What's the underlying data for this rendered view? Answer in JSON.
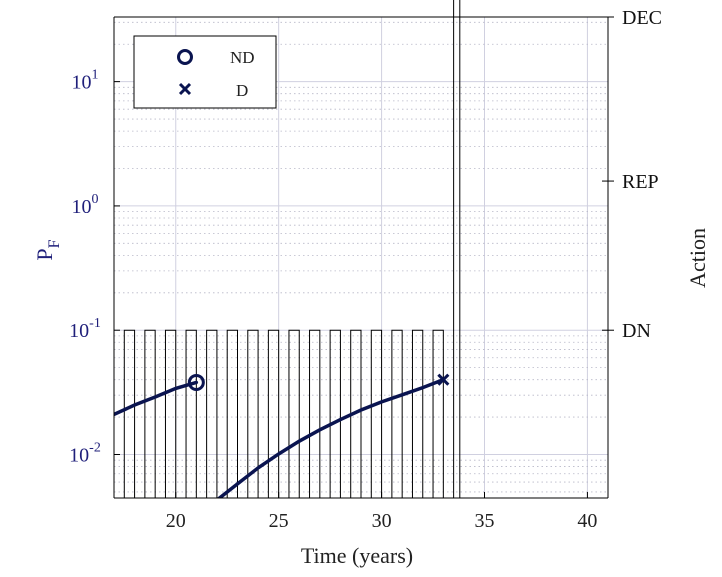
{
  "chart_data": {
    "type": "line",
    "xlabel": "Time (years)",
    "ylabel_left": {
      "main": "P",
      "sub": "F"
    },
    "ylabel_right": "Action",
    "xlim": [
      17,
      41
    ],
    "ylim_left_log10": [
      -2.35,
      1.52
    ],
    "y_scale_left": "log",
    "grid": true,
    "minor_grid": true,
    "legend_placement": "top-left",
    "x_ticks": [
      20,
      25,
      30,
      35,
      40
    ],
    "x_tick_labels": [
      "20",
      "25",
      "30",
      "35",
      "40"
    ],
    "y_left_ticks": [
      {
        "exp": 1,
        "base": "10",
        "sup": "1"
      },
      {
        "exp": 0,
        "base": "10",
        "sup": "0"
      },
      {
        "exp": -1,
        "base": "10",
        "sup": "-1"
      },
      {
        "exp": -2,
        "base": "10",
        "sup": "-2"
      }
    ],
    "y_right_ticks": [
      {
        "label": "DEC",
        "level": 3
      },
      {
        "label": "REP",
        "level": 2
      },
      {
        "label": "DN",
        "level": 1
      }
    ],
    "y_right_range": [
      0,
      3
    ],
    "series": [
      {
        "name": "ND",
        "marker": "circle",
        "end_marker_at": [
          21,
          0.038
        ],
        "points": [
          [
            17,
            0.021
          ],
          [
            18,
            0.025
          ],
          [
            19,
            0.029
          ],
          [
            20,
            0.034
          ],
          [
            21,
            0.038
          ]
        ]
      },
      {
        "name": "D",
        "marker": "x",
        "end_marker_at": [
          33,
          0.04
        ],
        "points": [
          [
            22,
            0.0043
          ],
          [
            23,
            0.0058
          ],
          [
            24,
            0.0078
          ],
          [
            25,
            0.0101
          ],
          [
            26,
            0.0128
          ],
          [
            27,
            0.0158
          ],
          [
            28,
            0.0191
          ],
          [
            29,
            0.0228
          ],
          [
            30,
            0.0265
          ],
          [
            31,
            0.0302
          ],
          [
            32,
            0.0345
          ],
          [
            33,
            0.04
          ]
        ]
      }
    ],
    "action_pulses": {
      "level": 1,
      "start": 17.5,
      "period": 1.0,
      "width": 0.5,
      "count": 16
    },
    "action_decommission": {
      "level": 3,
      "x_from": 33.5,
      "x_to": 33.8
    },
    "colors": {
      "series": "#0a1450",
      "left_axis": "#1f1f7a",
      "axis": "#000000",
      "grid": "#d0d0e0"
    }
  }
}
